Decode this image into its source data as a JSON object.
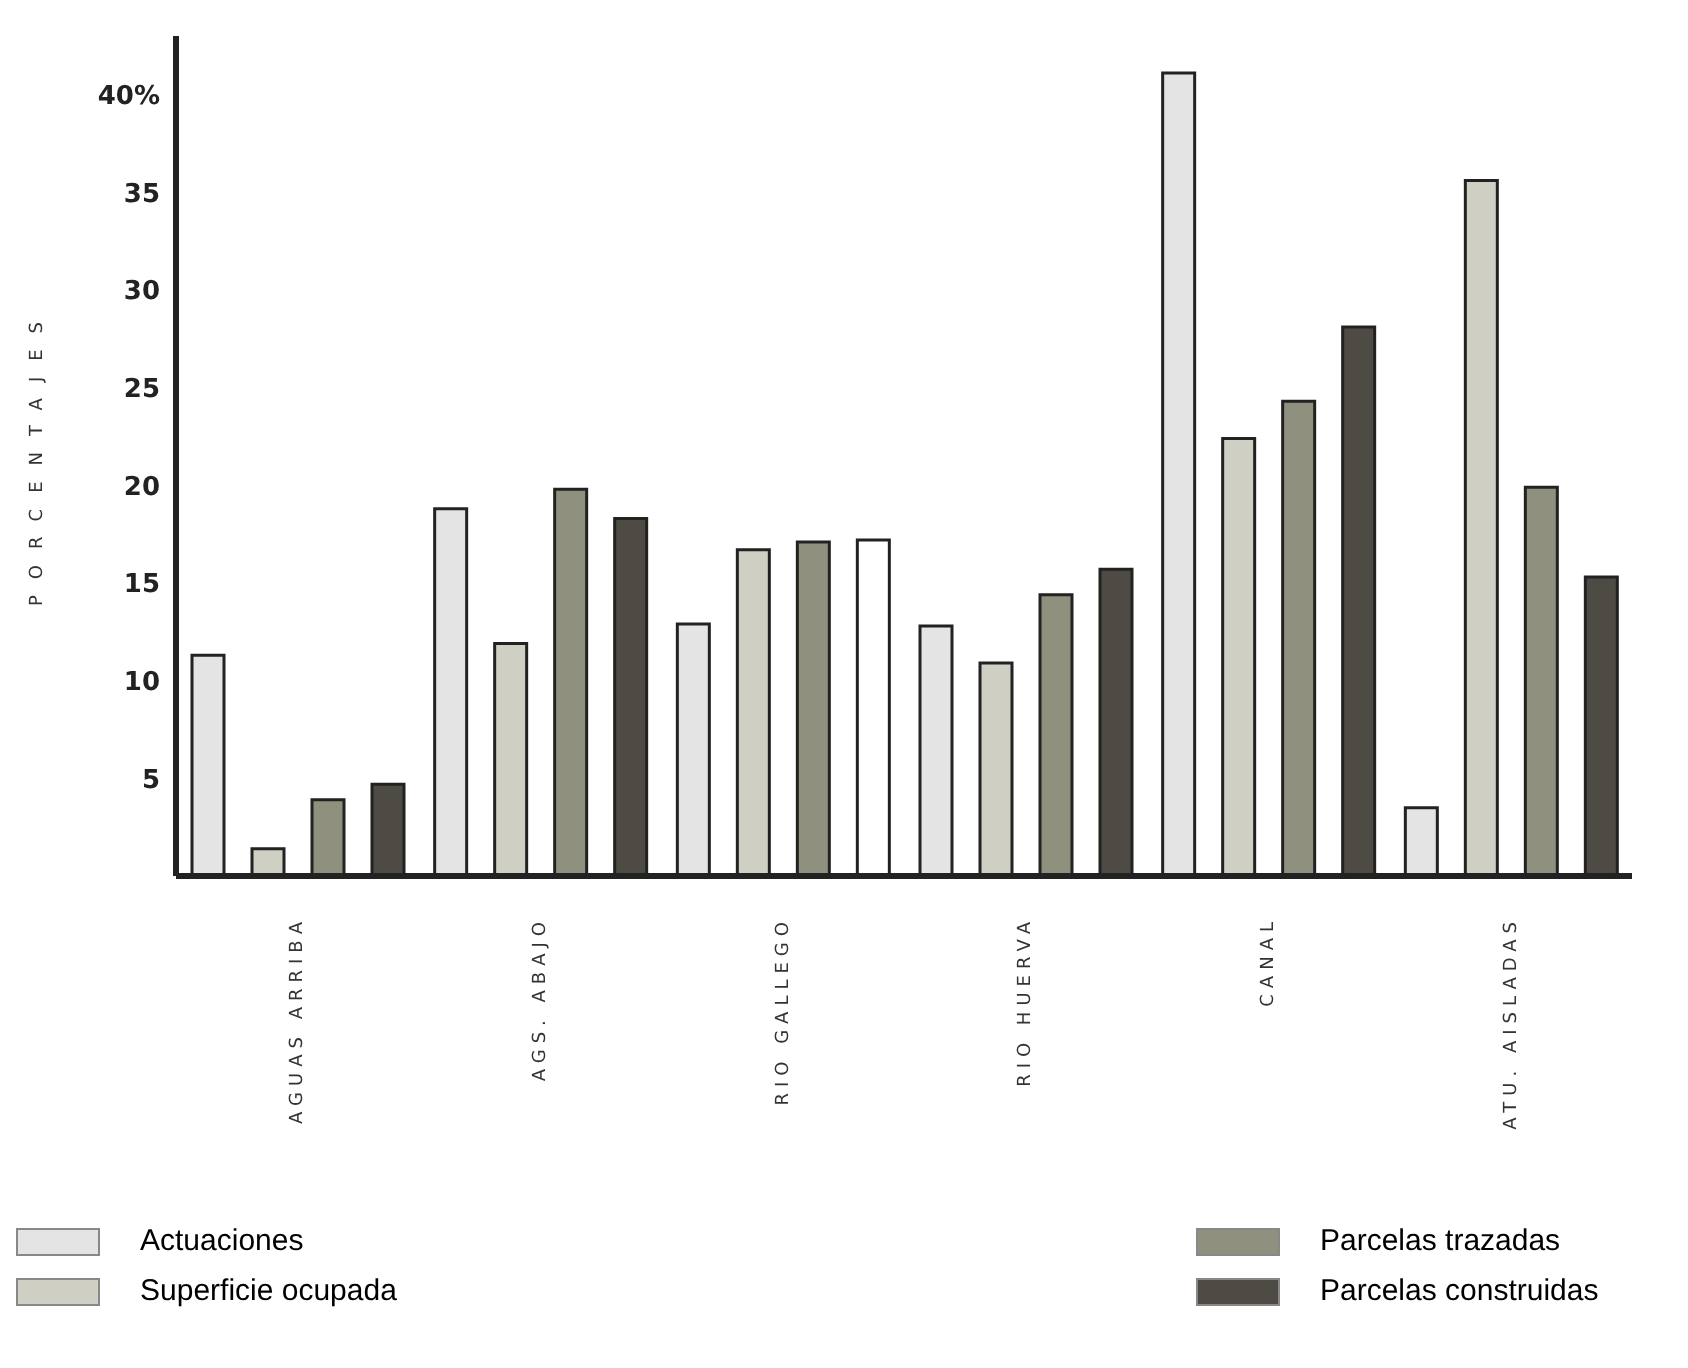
{
  "chart_data": {
    "type": "bar",
    "ylabel": "PORCENTAJES",
    "categories": [
      "AGUAS ARRIBA",
      "AGS. ABAJO",
      "RIO GALLEGO",
      "RIO HUERVA",
      "CANAL",
      "ATU. AISLADAS"
    ],
    "series": [
      {
        "name": "Actuaciones",
        "color": "#e4e4e4",
        "values": [
          11.3,
          18.8,
          12.9,
          12.8,
          41.1,
          3.5
        ]
      },
      {
        "name": "Superficie ocupada",
        "color": "#cfcfc4",
        "values": [
          1.4,
          11.9,
          16.7,
          10.9,
          22.4,
          35.6
        ]
      },
      {
        "name": "Parcelas trazadas",
        "color": "#8f917e",
        "values": [
          3.9,
          19.8,
          17.1,
          14.4,
          24.3,
          19.9
        ]
      },
      {
        "name": "Parcelas construidas",
        "color": "#4e4a44",
        "colors": [
          "#4e4a44",
          "#4e4a44",
          "#ffffff",
          "#4e4a44",
          "#4e4a44",
          "#4e4a44"
        ],
        "values": [
          4.7,
          18.3,
          17.2,
          15.7,
          28.1,
          15.3
        ]
      }
    ],
    "ylim": [
      0,
      43
    ],
    "yticks": [
      5,
      10,
      15,
      20,
      25,
      30,
      35,
      {
        "value": 40,
        "label": "40%"
      }
    ],
    "legend": "bottom"
  }
}
